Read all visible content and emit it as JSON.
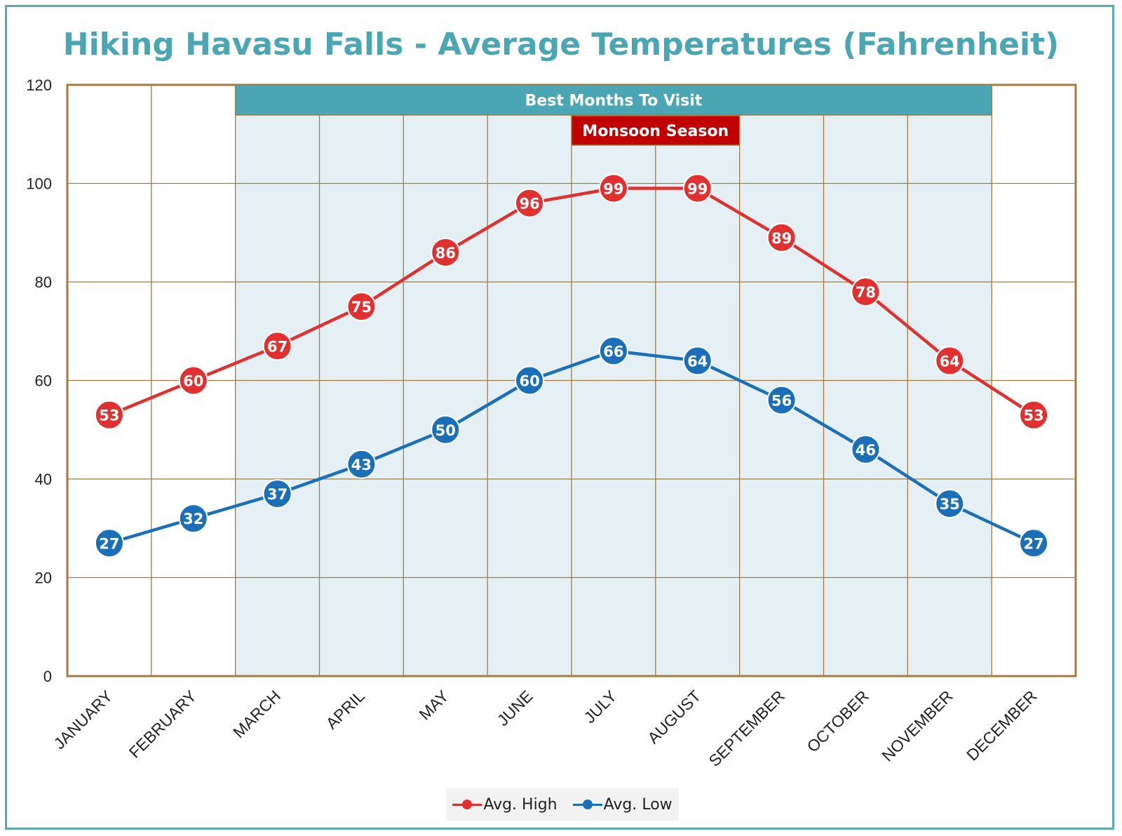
{
  "chart_data": {
    "type": "line",
    "title": "Hiking Havasu Falls - Average Temperatures (Fahrenheit)",
    "xlabel": "",
    "ylabel": "",
    "ylim": [
      0,
      120
    ],
    "yticks": [
      0,
      20,
      40,
      60,
      80,
      100,
      120
    ],
    "categories": [
      "JANUARY",
      "FEBRUARY",
      "MARCH",
      "APRIL",
      "MAY",
      "JUNE",
      "JULY",
      "AUGUST",
      "SEPTEMBER",
      "OCTOBER",
      "NOVEMBER",
      "DECEMBER"
    ],
    "series": [
      {
        "name": "Avg. High",
        "color": "#e03030",
        "values": [
          53,
          60,
          67,
          75,
          86,
          96,
          99,
          99,
          89,
          78,
          64,
          53
        ]
      },
      {
        "name": "Avg. Low",
        "color": "#1b6fb8",
        "values": [
          27,
          32,
          37,
          43,
          50,
          60,
          66,
          64,
          56,
          46,
          35,
          27
        ]
      }
    ],
    "bands": [
      {
        "label": "Best Months To Visit",
        "from": "MARCH",
        "to": "NOVEMBER",
        "color": "#4ba6b3",
        "fill": "#e4f0f4"
      },
      {
        "label": "Monsoon Season",
        "from": "JULY",
        "to": "AUGUST",
        "color": "#c00000"
      }
    ],
    "grid": true,
    "legend": "bottom"
  }
}
